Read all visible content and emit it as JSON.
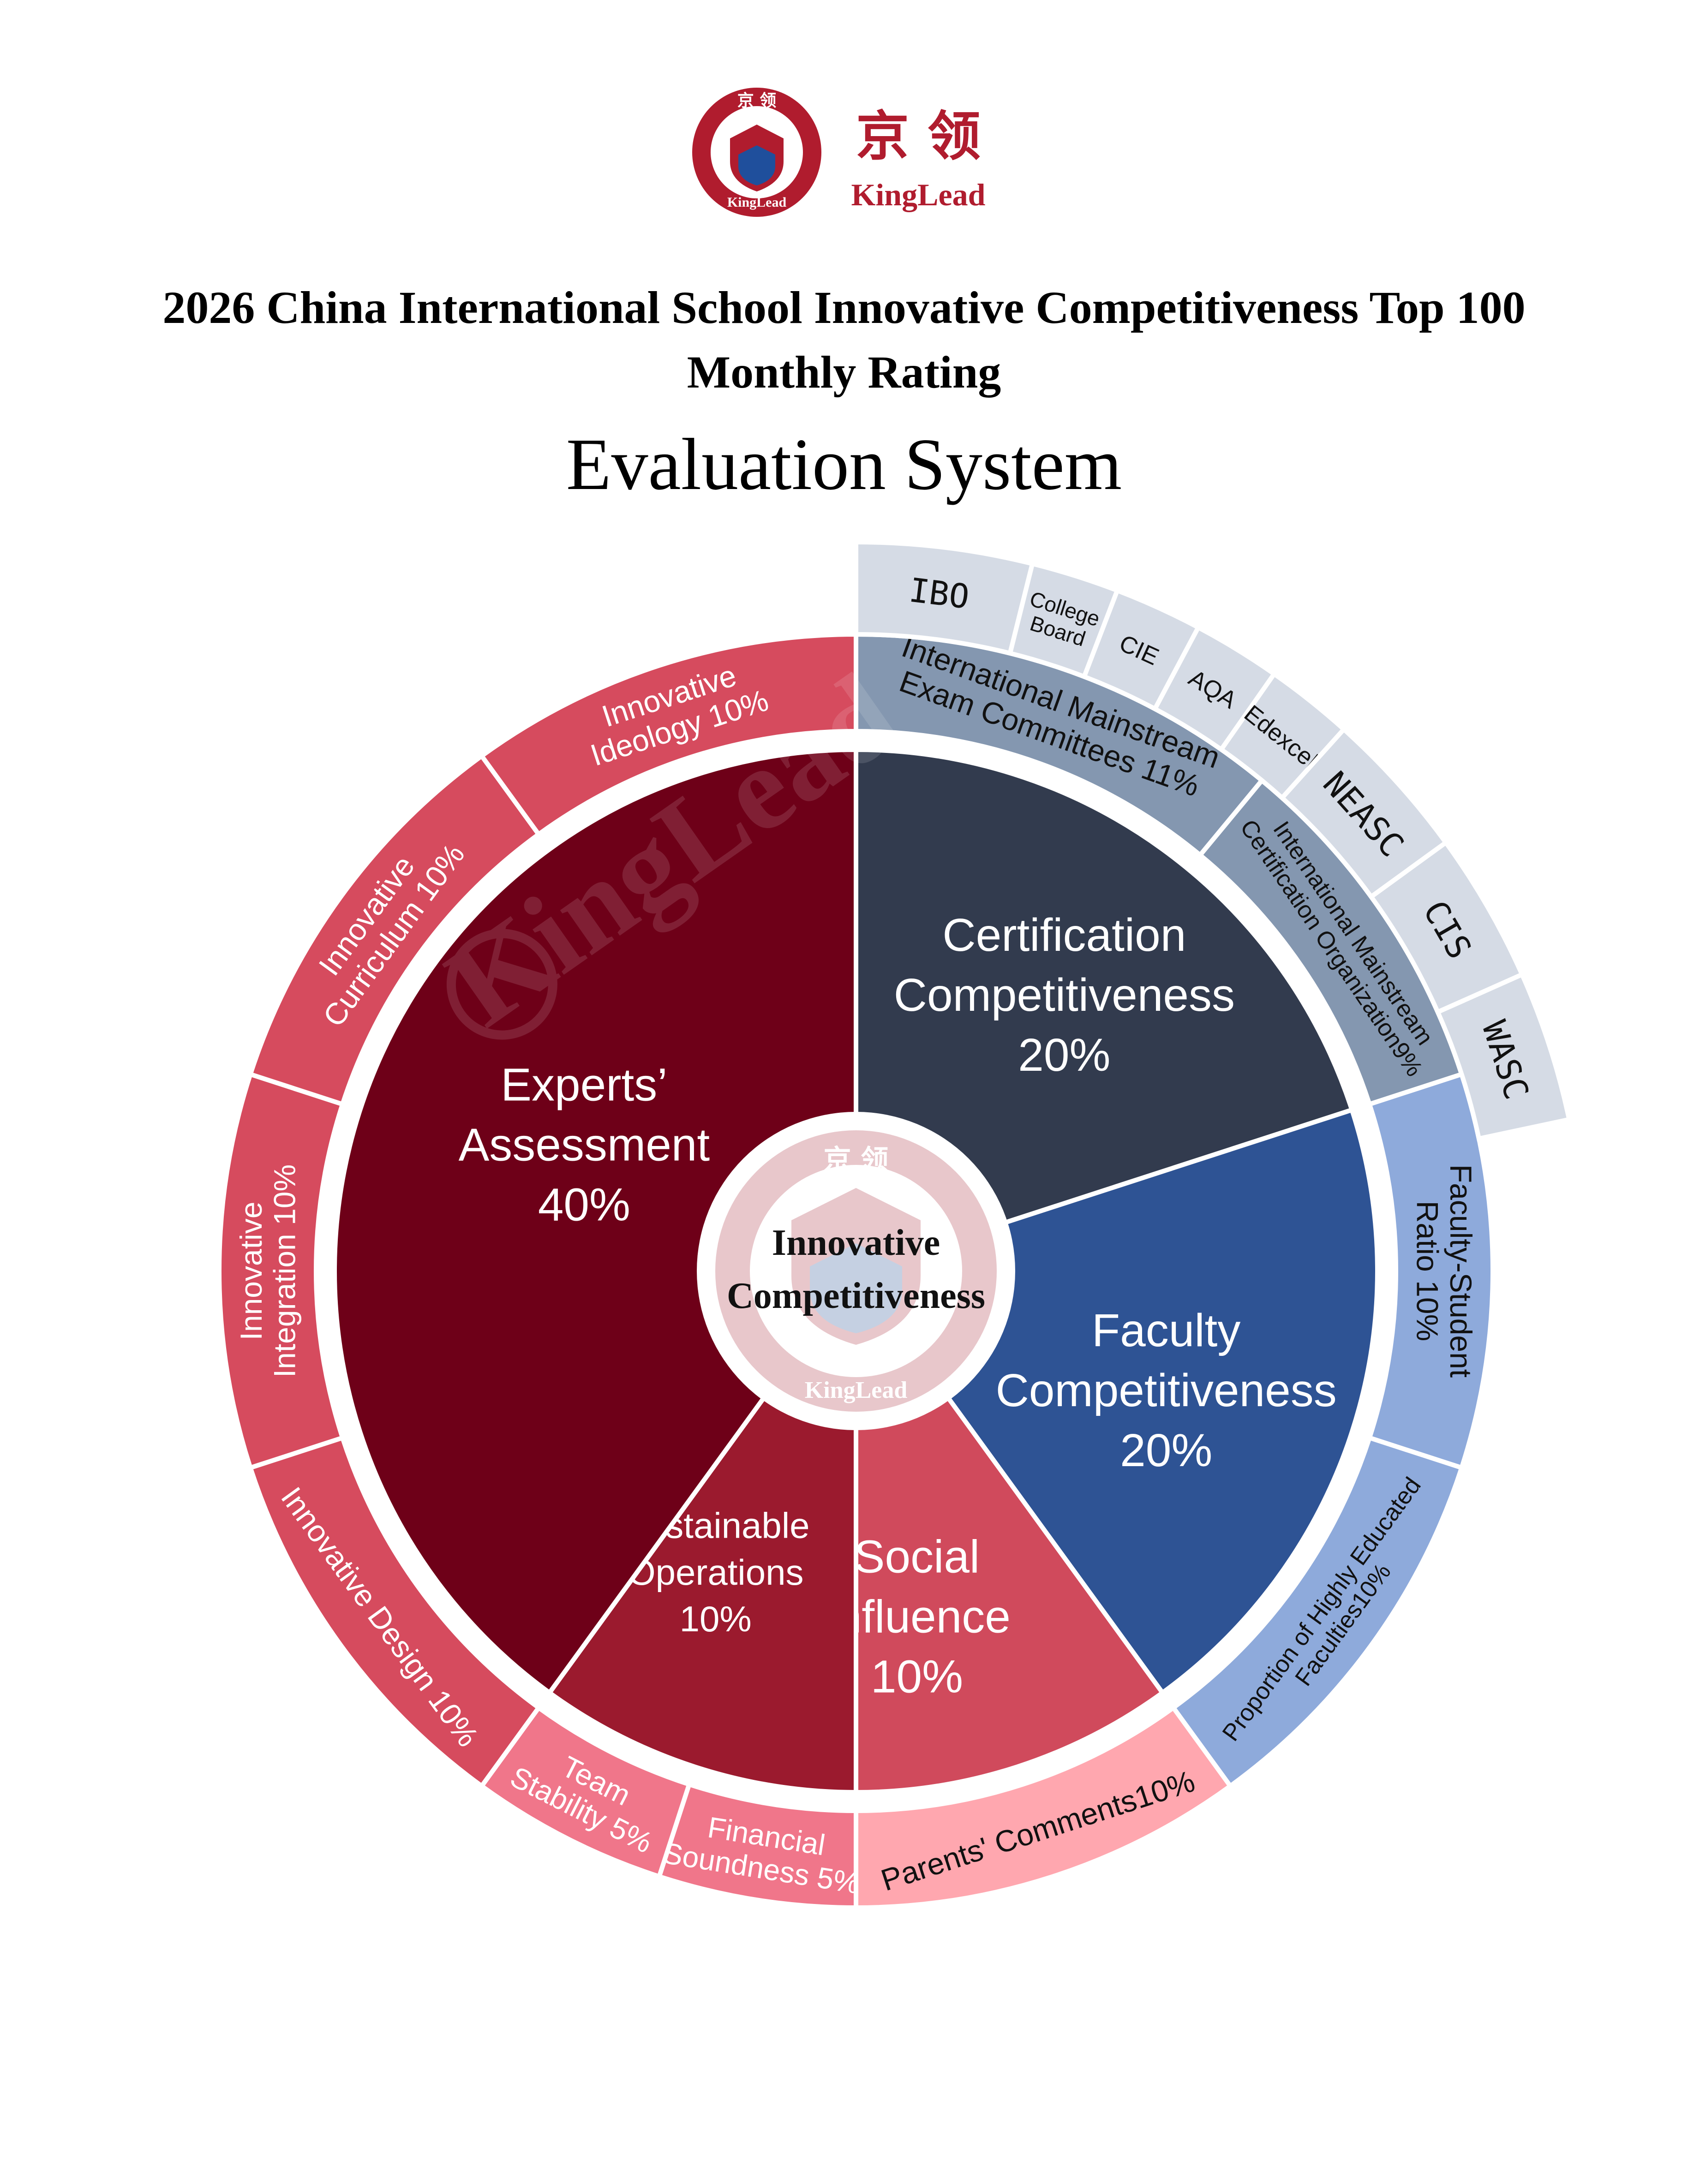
{
  "logo": {
    "emblem_top": "京 领",
    "emblem_bottom": "KingLead",
    "cn_name": "京 领",
    "en_name": "KingLead"
  },
  "title": {
    "line1": "2026 China International School Innovative Competitiveness Top 100",
    "line2": "Monthly Rating",
    "subtitle": "Evaluation System"
  },
  "center": {
    "line1": "Innovative",
    "line2": "Competitiveness",
    "emblem_top": "京 领",
    "emblem_bottom": "KingLead"
  },
  "watermark": "KingLead",
  "inner_segments": [
    {
      "id": "certification",
      "lines": [
        "Certification",
        "Competitiveness",
        "20%"
      ],
      "percent": 20,
      "color": "#323b4e"
    },
    {
      "id": "faculty",
      "lines": [
        "Faculty",
        "Competitiveness",
        "20%"
      ],
      "percent": 20,
      "color": "#2e5394"
    },
    {
      "id": "social",
      "lines": [
        "Social",
        "Influence",
        "10%"
      ],
      "percent": 10,
      "color": "#d04a5c"
    },
    {
      "id": "sustainable",
      "lines": [
        "Sustainable",
        "Operations",
        "10%"
      ],
      "percent": 10,
      "color": "#9b1a2e"
    },
    {
      "id": "experts",
      "lines": [
        "Experts’",
        "Assessment",
        "40%"
      ],
      "percent": 40,
      "color": "#6e0018"
    }
  ],
  "outer_segments": [
    {
      "id": "exam-committees",
      "lines": [
        "International Mainstream",
        "Exam Committees 11%"
      ],
      "percent": 11,
      "color": "#8497b0",
      "text": "dark"
    },
    {
      "id": "cert-orgs",
      "lines": [
        "International Mainstream",
        "Certification Organization9%"
      ],
      "percent": 9,
      "color": "#8497b0",
      "text": "dark"
    },
    {
      "id": "faculty-ratio",
      "lines": [
        "Faculty-Student",
        "Ratio 10%"
      ],
      "percent": 10,
      "color": "#8eaadb",
      "text": "dark"
    },
    {
      "id": "highly-educated",
      "lines": [
        "Proportion of Highly Educated",
        "Faculties10%"
      ],
      "percent": 10,
      "color": "#8eaadb",
      "text": "dark"
    },
    {
      "id": "parents",
      "lines": [
        "Parents' Comments10%"
      ],
      "percent": 10,
      "color": "#ffa7af",
      "text": "dark"
    },
    {
      "id": "financial",
      "lines": [
        "Financial",
        "Soundness 5%"
      ],
      "percent": 5,
      "color": "#f0768a",
      "text": "light"
    },
    {
      "id": "team",
      "lines": [
        "Team",
        "Stability 5%"
      ],
      "percent": 5,
      "color": "#f0768a",
      "text": "light"
    },
    {
      "id": "design",
      "lines": [
        "Innovative Design 10%"
      ],
      "percent": 10,
      "color": "#d64b5e",
      "text": "light"
    },
    {
      "id": "integration",
      "lines": [
        "Innovative",
        "Integration 10%"
      ],
      "percent": 10,
      "color": "#d64b5e",
      "text": "light"
    },
    {
      "id": "curriculum",
      "lines": [
        "Innovative",
        "Curriculum 10%"
      ],
      "percent": 10,
      "color": "#d64b5e",
      "text": "light"
    },
    {
      "id": "ideology",
      "lines": [
        "Innovative",
        "Ideology 10%"
      ],
      "percent": 10,
      "color": "#d64b5e",
      "text": "light"
    }
  ],
  "org_segments": [
    {
      "id": "ibo",
      "lines": [
        "IBO"
      ],
      "style": "mono",
      "color": "#d5dbe5"
    },
    {
      "id": "college-board",
      "lines": [
        "College",
        "Board"
      ],
      "style": "sans",
      "color": "#d5dbe5"
    },
    {
      "id": "cie",
      "lines": [
        "CIE"
      ],
      "style": "sans",
      "color": "#d5dbe5"
    },
    {
      "id": "aqa",
      "lines": [
        "AQA"
      ],
      "style": "sans",
      "color": "#d5dbe5"
    },
    {
      "id": "edexcel",
      "lines": [
        "Edexcel"
      ],
      "style": "sans",
      "color": "#d5dbe5"
    },
    {
      "id": "neasc",
      "lines": [
        "NEASC"
      ],
      "style": "mono",
      "color": "#d5dbe5"
    },
    {
      "id": "cis",
      "lines": [
        "CIS"
      ],
      "style": "mono",
      "color": "#d5dbe5"
    },
    {
      "id": "wasc",
      "lines": [
        "WASC"
      ],
      "style": "mono",
      "color": "#d5dbe5"
    }
  ]
}
